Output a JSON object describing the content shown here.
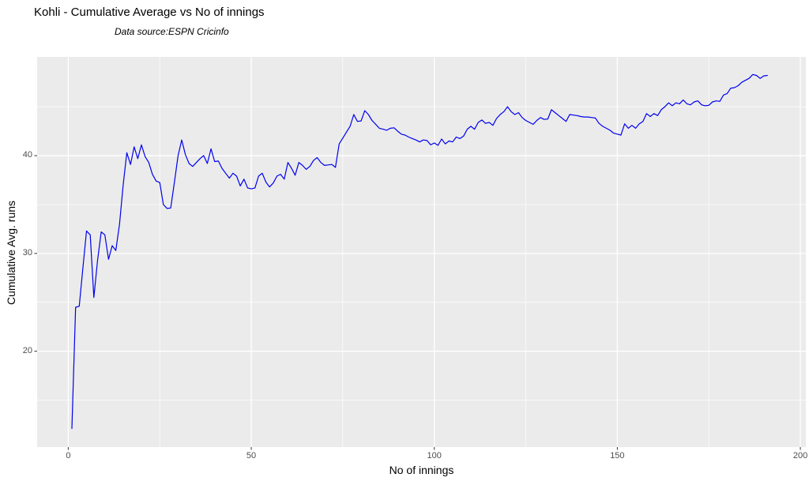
{
  "figure": {
    "title": "Kohli - Cumulative Average vs No of innings",
    "subtitle": "Data source:ESPN Cricinfo"
  },
  "chart_data": {
    "type": "line",
    "title": "Kohli - Cumulative Average vs No of innings",
    "subtitle": "Data source:ESPN Cricinfo",
    "xlabel": "No of innings",
    "ylabel": "Cumulative Avg. runs",
    "x_ticks": [
      0,
      50,
      100,
      150,
      200
    ],
    "y_ticks": [
      20,
      30,
      40
    ],
    "xlim": [
      -8.5,
      201.5
    ],
    "ylim": [
      10.2,
      50.1
    ],
    "grid": "white major and minor gridlines on gray panel",
    "legend_position": "none",
    "line_color": "#0000EE",
    "panel_color": "#EBEBEB",
    "grid_color": "#FFFFFF",
    "tick_text_color": "#4D4D4D",
    "tick_mark_color": "#333333",
    "series": [
      {
        "name": "Kohli cumulative batting average",
        "points": [
          [
            1,
            12.1
          ],
          [
            2,
            24.5
          ],
          [
            3,
            24.6
          ],
          [
            4,
            28.5
          ],
          [
            5,
            32.3
          ],
          [
            6,
            31.9
          ],
          [
            7,
            25.5
          ],
          [
            8,
            29.3
          ],
          [
            9,
            32.2
          ],
          [
            10,
            31.9
          ],
          [
            11,
            29.4
          ],
          [
            12,
            30.8
          ],
          [
            13,
            30.3
          ],
          [
            14,
            33.0
          ],
          [
            15,
            37.0
          ],
          [
            16,
            40.3
          ],
          [
            17,
            39.1
          ],
          [
            18,
            40.9
          ],
          [
            19,
            39.7
          ],
          [
            20,
            41.1
          ],
          [
            21,
            39.9
          ],
          [
            22,
            39.3
          ],
          [
            23,
            38.1
          ],
          [
            24,
            37.4
          ],
          [
            25,
            37.25
          ],
          [
            26,
            35.0
          ],
          [
            27,
            34.6
          ],
          [
            28,
            34.65
          ],
          [
            29,
            37.3
          ],
          [
            30,
            40.0
          ],
          [
            31,
            41.6
          ],
          [
            32,
            40.1
          ],
          [
            33,
            39.2
          ],
          [
            34,
            38.9
          ],
          [
            35,
            39.3
          ],
          [
            36,
            39.7
          ],
          [
            37,
            40.0
          ],
          [
            38,
            39.2
          ],
          [
            39,
            40.7
          ],
          [
            40,
            39.4
          ],
          [
            41,
            39.45
          ],
          [
            42,
            38.7
          ],
          [
            43,
            38.2
          ],
          [
            44,
            37.7
          ],
          [
            45,
            38.2
          ],
          [
            46,
            37.9
          ],
          [
            47,
            36.9
          ],
          [
            48,
            37.6
          ],
          [
            49,
            36.7
          ],
          [
            50,
            36.6
          ],
          [
            51,
            36.7
          ],
          [
            52,
            37.9
          ],
          [
            53,
            38.2
          ],
          [
            54,
            37.3
          ],
          [
            55,
            36.8
          ],
          [
            56,
            37.2
          ],
          [
            57,
            37.9
          ],
          [
            58,
            38.1
          ],
          [
            59,
            37.6
          ],
          [
            60,
            39.3
          ],
          [
            61,
            38.7
          ],
          [
            62,
            38.0
          ],
          [
            63,
            39.3
          ],
          [
            64,
            39.0
          ],
          [
            65,
            38.6
          ],
          [
            66,
            38.9
          ],
          [
            67,
            39.5
          ],
          [
            68,
            39.8
          ],
          [
            69,
            39.3
          ],
          [
            70,
            39.0
          ],
          [
            71,
            39.05
          ],
          [
            72,
            39.1
          ],
          [
            73,
            38.8
          ],
          [
            74,
            41.2
          ],
          [
            75,
            41.8
          ],
          [
            76,
            42.4
          ],
          [
            77,
            43.0
          ],
          [
            78,
            44.2
          ],
          [
            79,
            43.5
          ],
          [
            80,
            43.55
          ],
          [
            81,
            44.6
          ],
          [
            82,
            44.2
          ],
          [
            83,
            43.6
          ],
          [
            84,
            43.2
          ],
          [
            85,
            42.8
          ],
          [
            86,
            42.7
          ],
          [
            87,
            42.6
          ],
          [
            88,
            42.8
          ],
          [
            89,
            42.85
          ],
          [
            90,
            42.5
          ],
          [
            91,
            42.2
          ],
          [
            92,
            42.1
          ],
          [
            93,
            41.9
          ],
          [
            94,
            41.75
          ],
          [
            95,
            41.6
          ],
          [
            96,
            41.4
          ],
          [
            97,
            41.6
          ],
          [
            98,
            41.55
          ],
          [
            99,
            41.1
          ],
          [
            100,
            41.3
          ],
          [
            101,
            41.05
          ],
          [
            102,
            41.7
          ],
          [
            103,
            41.2
          ],
          [
            104,
            41.5
          ],
          [
            105,
            41.4
          ],
          [
            106,
            41.9
          ],
          [
            107,
            41.75
          ],
          [
            108,
            42.0
          ],
          [
            109,
            42.7
          ],
          [
            110,
            43.0
          ],
          [
            111,
            42.7
          ],
          [
            112,
            43.4
          ],
          [
            113,
            43.65
          ],
          [
            114,
            43.3
          ],
          [
            115,
            43.4
          ],
          [
            116,
            43.1
          ],
          [
            117,
            43.8
          ],
          [
            118,
            44.2
          ],
          [
            119,
            44.5
          ],
          [
            120,
            45.0
          ],
          [
            121,
            44.5
          ],
          [
            122,
            44.2
          ],
          [
            123,
            44.4
          ],
          [
            124,
            43.9
          ],
          [
            125,
            43.6
          ],
          [
            126,
            43.4
          ],
          [
            127,
            43.2
          ],
          [
            128,
            43.6
          ],
          [
            129,
            43.9
          ],
          [
            130,
            43.7
          ],
          [
            131,
            43.75
          ],
          [
            132,
            44.7
          ],
          [
            133,
            44.4
          ],
          [
            134,
            44.1
          ],
          [
            135,
            43.8
          ],
          [
            136,
            43.5
          ],
          [
            137,
            44.2
          ],
          [
            138,
            44.15
          ],
          [
            139,
            44.1
          ],
          [
            140,
            44.0
          ],
          [
            141,
            43.95
          ],
          [
            142,
            43.95
          ],
          [
            143,
            43.9
          ],
          [
            144,
            43.85
          ],
          [
            145,
            43.3
          ],
          [
            146,
            43.0
          ],
          [
            147,
            42.8
          ],
          [
            148,
            42.6
          ],
          [
            149,
            42.3
          ],
          [
            150,
            42.2
          ],
          [
            151,
            42.1
          ],
          [
            152,
            43.25
          ],
          [
            153,
            42.8
          ],
          [
            154,
            43.1
          ],
          [
            155,
            42.8
          ],
          [
            156,
            43.25
          ],
          [
            157,
            43.5
          ],
          [
            158,
            44.3
          ],
          [
            159,
            44.0
          ],
          [
            160,
            44.3
          ],
          [
            161,
            44.1
          ],
          [
            162,
            44.7
          ],
          [
            163,
            45.0
          ],
          [
            164,
            45.4
          ],
          [
            165,
            45.1
          ],
          [
            166,
            45.4
          ],
          [
            167,
            45.3
          ],
          [
            168,
            45.7
          ],
          [
            169,
            45.3
          ],
          [
            170,
            45.2
          ],
          [
            171,
            45.5
          ],
          [
            172,
            45.6
          ],
          [
            173,
            45.2
          ],
          [
            174,
            45.1
          ],
          [
            175,
            45.15
          ],
          [
            176,
            45.5
          ],
          [
            177,
            45.6
          ],
          [
            178,
            45.55
          ],
          [
            179,
            46.2
          ],
          [
            180,
            46.35
          ],
          [
            181,
            46.9
          ],
          [
            182,
            46.95
          ],
          [
            183,
            47.15
          ],
          [
            184,
            47.5
          ],
          [
            185,
            47.7
          ],
          [
            186,
            47.9
          ],
          [
            187,
            48.3
          ],
          [
            188,
            48.2
          ],
          [
            189,
            47.9
          ],
          [
            190,
            48.15
          ],
          [
            191,
            48.2
          ]
        ]
      }
    ]
  }
}
